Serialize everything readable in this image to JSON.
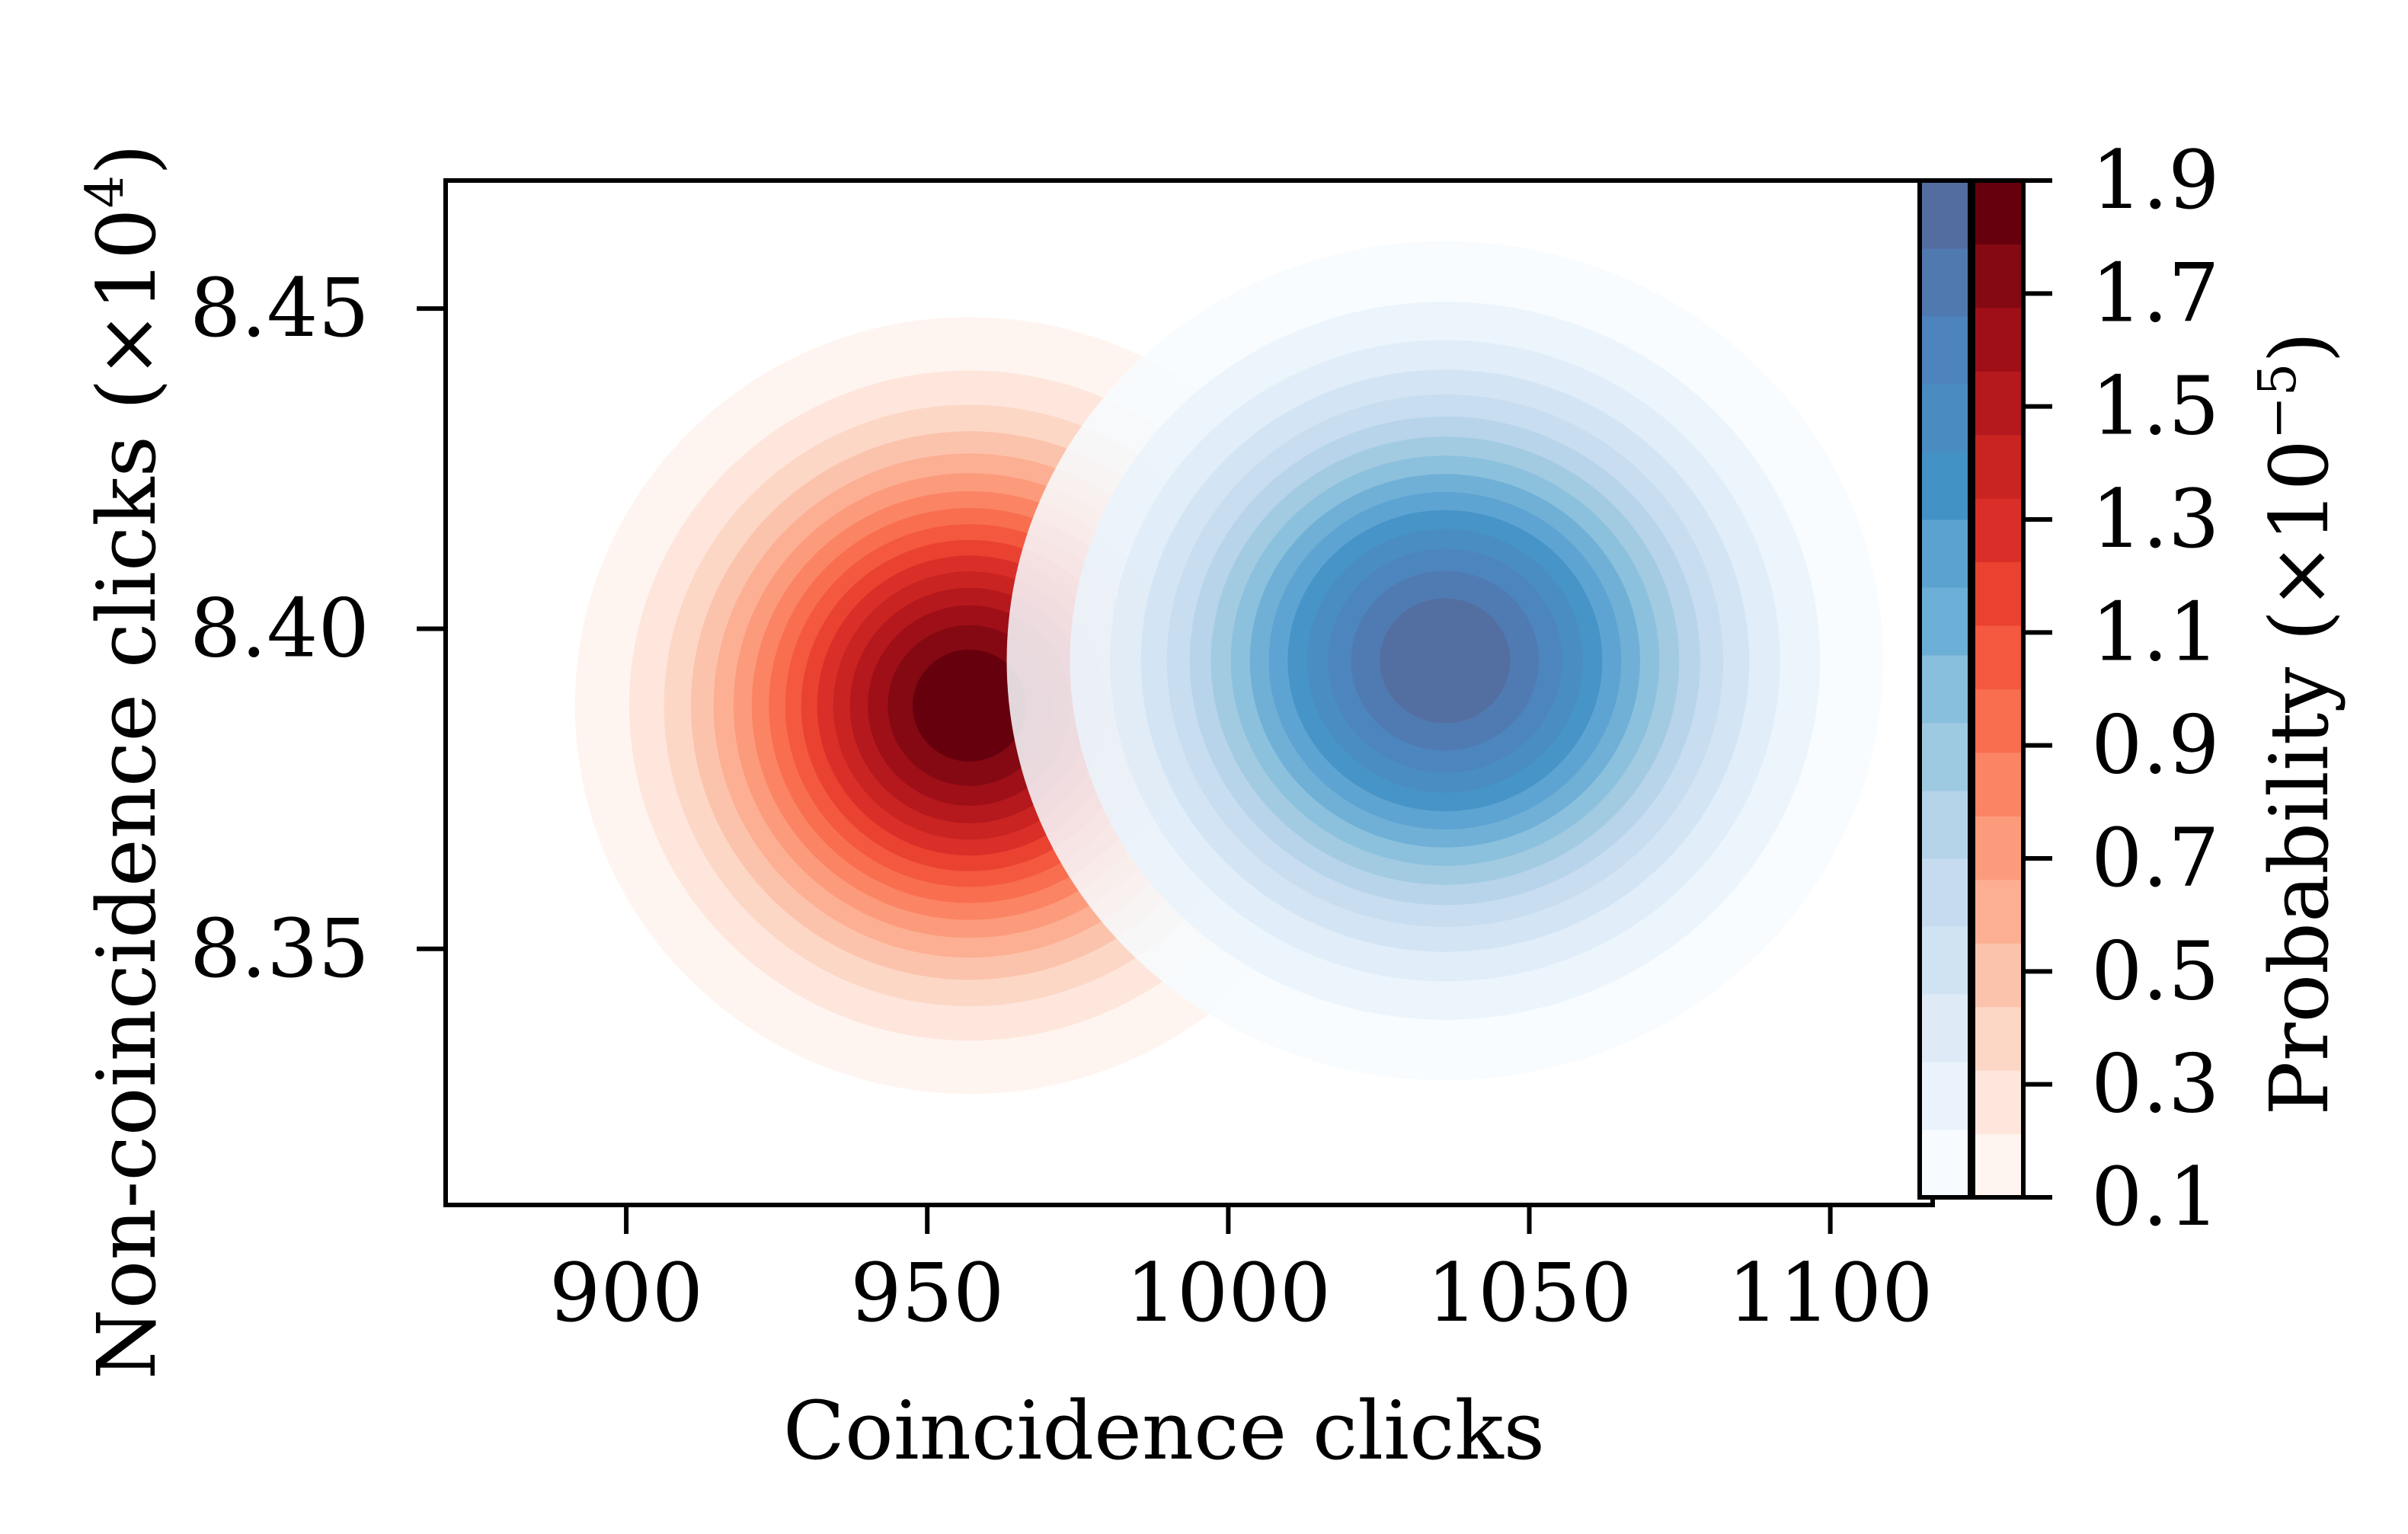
{
  "chart_data": {
    "type": "contour",
    "title": "",
    "xlabel": "Coincidence clicks",
    "ylabel": "Non-coincidence clicks (×10",
    "ylabel_exponent": "4",
    "ylabel_close": ")",
    "xlim": [
      870,
      1117
    ],
    "ylim": [
      8.31,
      8.47
    ],
    "xticks": [
      900,
      950,
      1000,
      1050,
      1100
    ],
    "xtick_labels": [
      "900",
      "950",
      "1000",
      "1050",
      "1100"
    ],
    "yticks": [
      8.35,
      8.4,
      8.45
    ],
    "ytick_labels": [
      "8.35",
      "8.40",
      "8.45"
    ],
    "grid": false,
    "series": [
      {
        "colormap": "Reds",
        "center": [
          957,
          8.388
        ],
        "sigma": [
          27,
          0.025
        ],
        "peak": 1.9,
        "colors": [
          "#fff5f0",
          "#fee6dc",
          "#fdd7c6",
          "#fcc3ac",
          "#fcaf93",
          "#fc9b7c",
          "#fb8464",
          "#f86e4f",
          "#f4583f",
          "#ea4231",
          "#da2f28",
          "#c92421",
          "#b5181d",
          "#9f0f18",
          "#840913",
          "#67000d"
        ]
      },
      {
        "colormap": "Blues",
        "center": [
          1036,
          8.395
        ],
        "sigma": [
          30,
          0.027
        ],
        "peak": 1.9,
        "colors": [
          "#f7fbff",
          "#eaf3fb",
          "#deebf7",
          "#d0e3f3",
          "#c6dbef",
          "#b4d3e9",
          "#9ecae1",
          "#88bfdc",
          "#6baed6",
          "#5ba2d0",
          "#4292c6",
          "#4a8cc2",
          "#4e84bd",
          "#5079b0",
          "#546da0"
        ]
      }
    ],
    "colorbar": {
      "label": "Probability (×10",
      "label_exponent": "−5",
      "label_close": ")",
      "range": [
        0.1,
        1.9
      ],
      "ticks": [
        0.1,
        0.3,
        0.5,
        0.7,
        0.9,
        1.1,
        1.3,
        1.5,
        1.7,
        1.9
      ],
      "tick_labels": [
        "0.1",
        "0.3",
        "0.5",
        "0.7",
        "0.9",
        "1.1",
        "1.3",
        "1.5",
        "1.7",
        "1.9"
      ]
    }
  }
}
